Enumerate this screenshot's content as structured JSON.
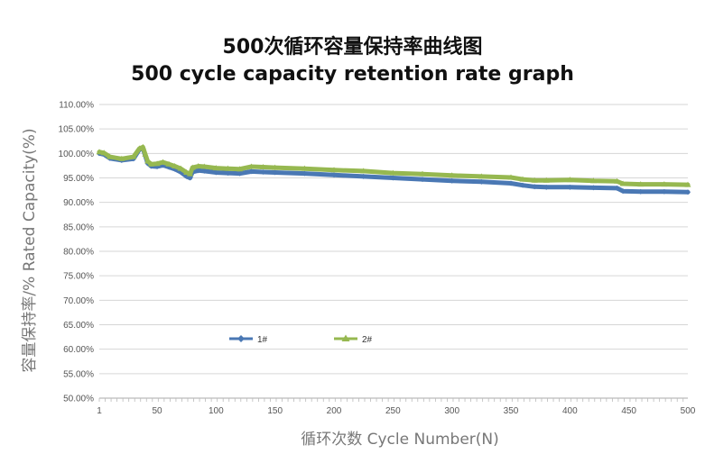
{
  "chart_data": {
    "type": "line",
    "title": "500次循环容量保持率曲线图",
    "subtitle": "500 cycle capacity retention rate graph",
    "xlabel": "循环次数 Cycle Number(N)",
    "ylabel": "容量保持率/% Rated Capacity(%)",
    "xlim": [
      1,
      500
    ],
    "ylim": [
      50,
      110
    ],
    "x_ticks": [
      1,
      50,
      100,
      150,
      200,
      250,
      300,
      350,
      400,
      450,
      500
    ],
    "y_ticks": [
      "50.00%",
      "55.00%",
      "60.00%",
      "65.00%",
      "70.00%",
      "75.00%",
      "80.00%",
      "85.00%",
      "90.00%",
      "95.00%",
      "100.00%",
      "105.00%",
      "110.00%"
    ],
    "grid": "horizontal",
    "legend_position": "inside-bottom-left",
    "series": [
      {
        "name": "1#",
        "color": "#4a78b4",
        "marker": "diamond",
        "x": [
          1,
          5,
          10,
          20,
          30,
          35,
          38,
          40,
          42,
          45,
          50,
          55,
          60,
          65,
          70,
          75,
          78,
          80,
          85,
          90,
          100,
          110,
          120,
          130,
          140,
          150,
          175,
          200,
          225,
          250,
          275,
          300,
          325,
          350,
          360,
          370,
          380,
          400,
          420,
          440,
          445,
          460,
          480,
          500
        ],
        "y": [
          100.0,
          99.8,
          99.0,
          98.6,
          98.9,
          100.8,
          101.0,
          99.5,
          98.0,
          97.4,
          97.3,
          97.6,
          97.2,
          96.8,
          96.2,
          95.3,
          95.0,
          96.2,
          96.5,
          96.4,
          96.1,
          96.0,
          95.9,
          96.3,
          96.2,
          96.1,
          95.9,
          95.6,
          95.3,
          95.0,
          94.7,
          94.4,
          94.2,
          93.9,
          93.5,
          93.2,
          93.1,
          93.1,
          93.0,
          92.9,
          92.3,
          92.2,
          92.2,
          92.1
        ]
      },
      {
        "name": "2#",
        "color": "#96b850",
        "marker": "triangle",
        "x": [
          1,
          5,
          10,
          20,
          30,
          35,
          38,
          40,
          42,
          45,
          50,
          55,
          60,
          65,
          70,
          75,
          78,
          80,
          85,
          90,
          100,
          110,
          120,
          130,
          140,
          150,
          175,
          200,
          225,
          250,
          275,
          300,
          325,
          350,
          360,
          370,
          380,
          400,
          420,
          440,
          445,
          460,
          480,
          500
        ],
        "y": [
          100.3,
          100.1,
          99.3,
          98.9,
          99.3,
          101.0,
          101.3,
          99.8,
          98.4,
          97.8,
          97.9,
          98.2,
          97.8,
          97.4,
          96.9,
          96.1,
          95.8,
          97.1,
          97.4,
          97.3,
          97.0,
          96.9,
          96.8,
          97.3,
          97.2,
          97.1,
          96.9,
          96.6,
          96.4,
          96.0,
          95.8,
          95.5,
          95.3,
          95.1,
          94.7,
          94.5,
          94.5,
          94.6,
          94.4,
          94.3,
          93.8,
          93.7,
          93.7,
          93.6
        ]
      }
    ]
  }
}
